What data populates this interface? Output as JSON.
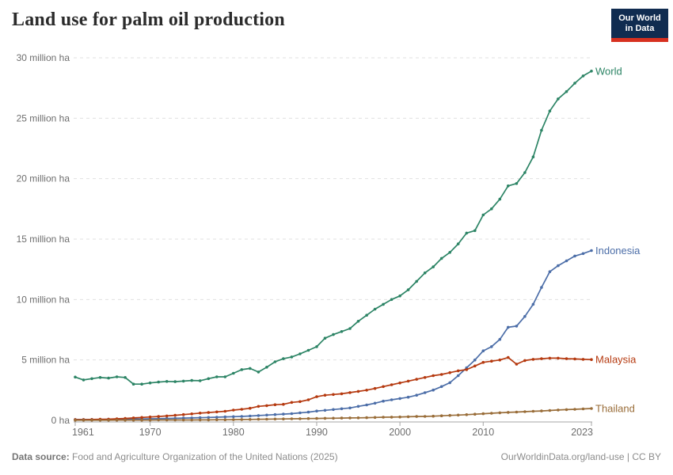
{
  "logo": {
    "line1": "Our World",
    "line2": "in Data"
  },
  "footer": {
    "datasource_label": "Data source:",
    "datasource": " Food and Agriculture Organization of the United Nations (2025)",
    "link": "OurWorldinData.org/land-use",
    "separator": " | ",
    "license": "CC BY"
  },
  "chart_data": {
    "type": "line",
    "title": "Land use for palm oil production",
    "xlabel": "",
    "ylabel": "hectares",
    "grid": "dashed horizontal",
    "legend_position": "right-end-labels",
    "xlim": [
      1961,
      2023
    ],
    "ylim": [
      0,
      30
    ],
    "unit": "million ha",
    "x_ticks": [
      1961,
      1970,
      1980,
      1990,
      2000,
      2010,
      2023
    ],
    "y_ticks": [
      {
        "value": 0,
        "label": "0 ha"
      },
      {
        "value": 5,
        "label": "5 million ha"
      },
      {
        "value": 10,
        "label": "10 million ha"
      },
      {
        "value": 15,
        "label": "15 million ha"
      },
      {
        "value": 20,
        "label": "20 million ha"
      },
      {
        "value": 25,
        "label": "25 million ha"
      },
      {
        "value": 30,
        "label": "30 million ha"
      }
    ],
    "x": [
      1961,
      1962,
      1963,
      1964,
      1965,
      1966,
      1967,
      1968,
      1969,
      1970,
      1971,
      1972,
      1973,
      1974,
      1975,
      1976,
      1977,
      1978,
      1979,
      1980,
      1981,
      1982,
      1983,
      1984,
      1985,
      1986,
      1987,
      1988,
      1989,
      1990,
      1991,
      1992,
      1993,
      1994,
      1995,
      1996,
      1997,
      1998,
      1999,
      2000,
      2001,
      2002,
      2003,
      2004,
      2005,
      2006,
      2007,
      2008,
      2009,
      2010,
      2011,
      2012,
      2013,
      2014,
      2015,
      2016,
      2017,
      2018,
      2019,
      2020,
      2021,
      2022,
      2023
    ],
    "series": [
      {
        "name": "World",
        "color": "#2C8465",
        "values": [
          3.58,
          3.35,
          3.45,
          3.55,
          3.5,
          3.6,
          3.55,
          3.0,
          3.0,
          3.1,
          3.17,
          3.22,
          3.2,
          3.25,
          3.3,
          3.28,
          3.45,
          3.6,
          3.6,
          3.9,
          4.2,
          4.3,
          4.0,
          4.4,
          4.85,
          5.1,
          5.25,
          5.5,
          5.8,
          6.1,
          6.8,
          7.1,
          7.35,
          7.6,
          8.2,
          8.7,
          9.2,
          9.6,
          10.0,
          10.3,
          10.8,
          11.5,
          12.2,
          12.7,
          13.4,
          13.9,
          14.6,
          15.5,
          15.7,
          17.0,
          17.5,
          18.3,
          19.4,
          19.6,
          20.5,
          21.8,
          24.0,
          25.6,
          26.6,
          27.2,
          27.9,
          28.5,
          28.9
        ]
      },
      {
        "name": "Indonesia",
        "color": "#4C6EA8",
        "values": [
          0.07,
          0.07,
          0.08,
          0.08,
          0.09,
          0.09,
          0.1,
          0.11,
          0.12,
          0.13,
          0.14,
          0.16,
          0.17,
          0.19,
          0.2,
          0.22,
          0.24,
          0.26,
          0.29,
          0.31,
          0.33,
          0.36,
          0.4,
          0.44,
          0.48,
          0.52,
          0.56,
          0.62,
          0.68,
          0.77,
          0.83,
          0.9,
          0.96,
          1.03,
          1.16,
          1.28,
          1.42,
          1.59,
          1.7,
          1.81,
          1.92,
          2.08,
          2.29,
          2.51,
          2.8,
          3.12,
          3.7,
          4.35,
          5.0,
          5.75,
          6.1,
          6.7,
          7.7,
          7.8,
          8.6,
          9.6,
          11.0,
          12.3,
          12.8,
          13.2,
          13.6,
          13.8,
          14.05
        ]
      },
      {
        "name": "Malaysia",
        "color": "#B5390F",
        "values": [
          0.06,
          0.06,
          0.07,
          0.09,
          0.1,
          0.13,
          0.16,
          0.2,
          0.24,
          0.28,
          0.32,
          0.37,
          0.42,
          0.48,
          0.54,
          0.6,
          0.65,
          0.7,
          0.75,
          0.85,
          0.92,
          1.0,
          1.16,
          1.22,
          1.3,
          1.33,
          1.49,
          1.55,
          1.7,
          1.96,
          2.08,
          2.14,
          2.2,
          2.3,
          2.4,
          2.5,
          2.64,
          2.8,
          2.95,
          3.1,
          3.25,
          3.4,
          3.55,
          3.7,
          3.8,
          3.95,
          4.1,
          4.2,
          4.5,
          4.8,
          4.9,
          5.0,
          5.2,
          4.65,
          4.95,
          5.05,
          5.1,
          5.15,
          5.15,
          5.1,
          5.08,
          5.05,
          5.03
        ]
      },
      {
        "name": "Thailand",
        "color": "#996D39",
        "values": [
          0.01,
          0.01,
          0.01,
          0.01,
          0.01,
          0.02,
          0.02,
          0.02,
          0.02,
          0.02,
          0.03,
          0.03,
          0.03,
          0.03,
          0.03,
          0.04,
          0.04,
          0.05,
          0.05,
          0.06,
          0.07,
          0.08,
          0.09,
          0.1,
          0.11,
          0.12,
          0.13,
          0.14,
          0.15,
          0.16,
          0.17,
          0.18,
          0.19,
          0.2,
          0.21,
          0.22,
          0.24,
          0.26,
          0.27,
          0.28,
          0.3,
          0.32,
          0.33,
          0.35,
          0.38,
          0.41,
          0.44,
          0.47,
          0.51,
          0.55,
          0.59,
          0.63,
          0.66,
          0.69,
          0.72,
          0.75,
          0.78,
          0.82,
          0.86,
          0.89,
          0.92,
          0.95,
          0.98
        ]
      }
    ]
  }
}
